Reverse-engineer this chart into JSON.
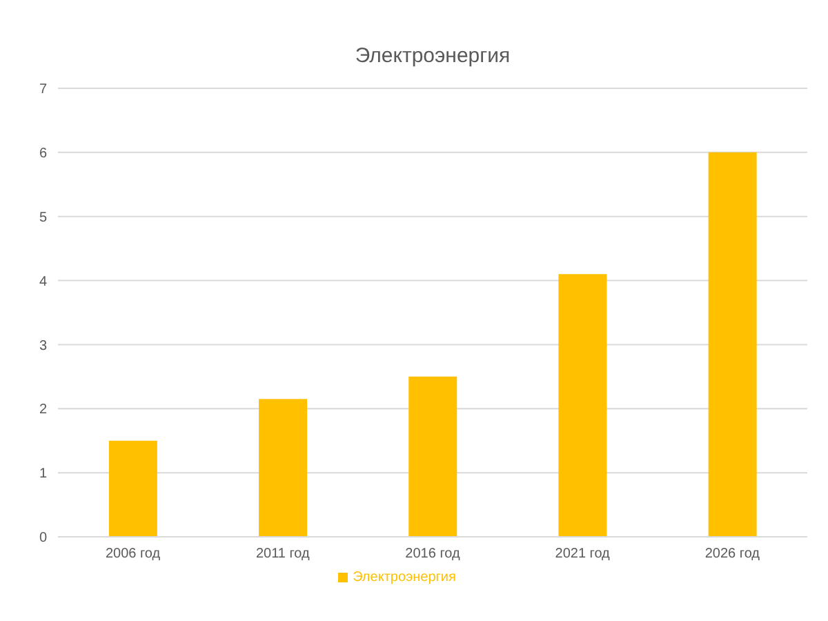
{
  "chart_data": {
    "type": "bar",
    "title": "Электроэнергия",
    "categories": [
      "2006 год",
      "2011 год",
      "2016 год",
      "2021 год",
      "2026 год"
    ],
    "series": [
      {
        "name": "Электроэнергия",
        "color": "#ffc000",
        "values": [
          1.5,
          2.15,
          2.5,
          4.1,
          6
        ]
      }
    ],
    "ylim": [
      0,
      7
    ],
    "yticks": [
      0,
      1,
      2,
      3,
      4,
      5,
      6,
      7
    ],
    "grid": "y",
    "legend": "bottom"
  }
}
